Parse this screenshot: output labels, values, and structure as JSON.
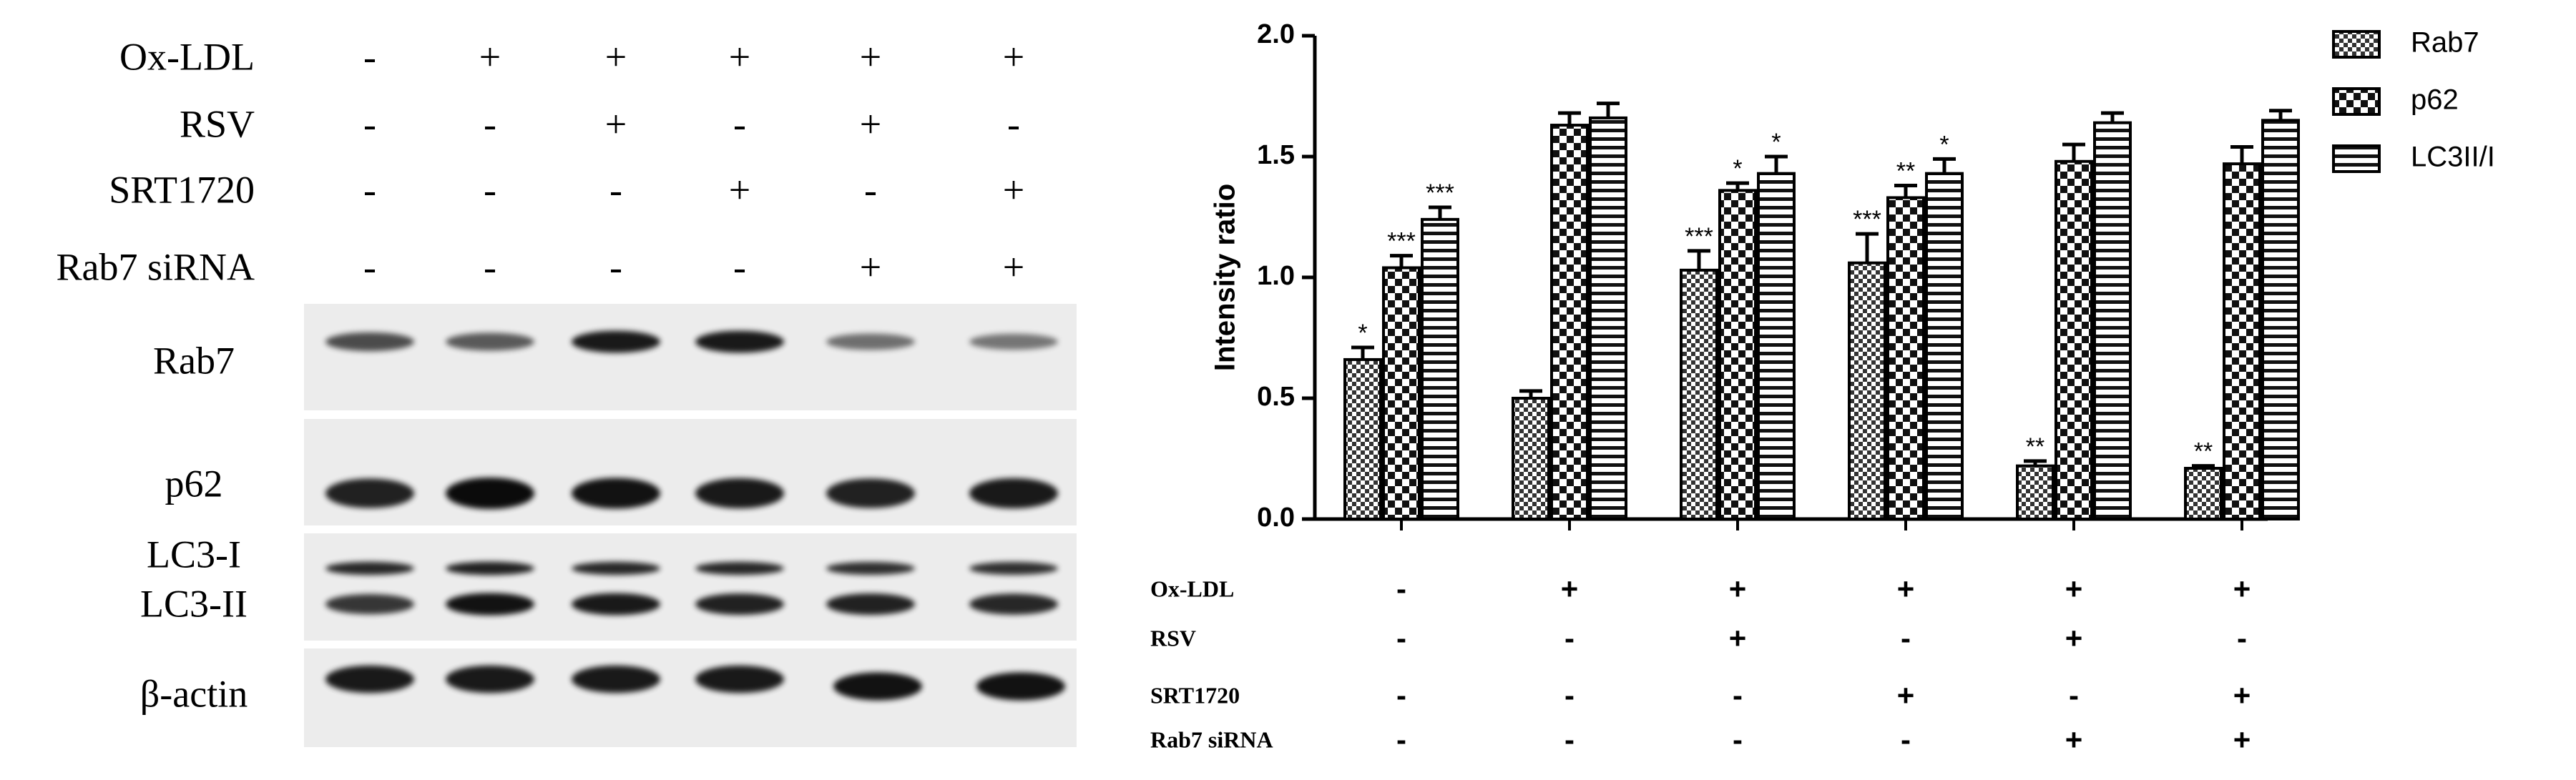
{
  "blot": {
    "treatments": [
      {
        "name": "Ox-LDL",
        "signs": [
          "-",
          "+",
          "+",
          "+",
          "+",
          "+"
        ]
      },
      {
        "name": "RSV",
        "signs": [
          "-",
          "-",
          "+",
          "-",
          "+",
          "-"
        ]
      },
      {
        "name": "SRT1720",
        "signs": [
          "-",
          "-",
          "-",
          "+",
          "-",
          "+"
        ]
      },
      {
        "name": "Rab7 siRNA",
        "signs": [
          "-",
          "-",
          "-",
          "-",
          "+",
          "+"
        ]
      }
    ],
    "bands": [
      "Rab7",
      "p62",
      "LC3-I",
      "LC3-II",
      "β-actin"
    ]
  },
  "chart_data": {
    "type": "bar",
    "ylabel": "Intensity ratio",
    "categories": [
      null,
      null,
      null,
      null,
      null,
      null
    ],
    "series": [
      {
        "name": "Rab7",
        "color": "#000000",
        "pattern": "checker-small",
        "values": [
          0.66,
          0.5,
          1.03,
          1.06,
          0.22,
          0.21
        ],
        "errors": [
          0.05,
          0.03,
          0.08,
          0.12,
          0.02,
          0.01
        ],
        "significance": [
          "*",
          null,
          "***",
          "***",
          "**",
          "**"
        ]
      },
      {
        "name": "p62",
        "color": "#000000",
        "pattern": "checker-large",
        "values": [
          1.04,
          1.63,
          1.36,
          1.33,
          1.48,
          1.47
        ],
        "errors": [
          0.05,
          0.05,
          0.03,
          0.05,
          0.07,
          0.07
        ],
        "significance": [
          "***",
          null,
          "*",
          "**",
          null,
          null
        ]
      },
      {
        "name": "LC3II/I",
        "color": "#000000",
        "pattern": "horizontal-lines",
        "values": [
          1.24,
          1.66,
          1.43,
          1.43,
          1.64,
          1.65
        ],
        "errors": [
          0.05,
          0.06,
          0.07,
          0.06,
          0.04,
          0.04
        ],
        "significance": [
          "***",
          null,
          "*",
          "*",
          null,
          null
        ]
      }
    ],
    "ylim": [
      0,
      2
    ],
    "yticks": [
      {
        "value": 0,
        "label": "0.0"
      },
      {
        "value": 0.5,
        "label": "0.5"
      },
      {
        "value": 1,
        "label": "1.0"
      },
      {
        "value": 1.5,
        "label": "1.5"
      },
      {
        "value": 2,
        "label": "2.0"
      }
    ],
    "legend": "right",
    "treatments": [
      {
        "name": "Ox-LDL",
        "signs": [
          "-",
          "+",
          "+",
          "+",
          "+",
          "+"
        ]
      },
      {
        "name": "RSV",
        "signs": [
          "-",
          "-",
          "+",
          "-",
          "+",
          "-"
        ]
      },
      {
        "name": "SRT1720",
        "signs": [
          "-",
          "-",
          "-",
          "+",
          "-",
          "+"
        ]
      },
      {
        "name": "Rab7 siRNA",
        "signs": [
          "-",
          "-",
          "-",
          "-",
          "+",
          "+"
        ]
      }
    ]
  }
}
